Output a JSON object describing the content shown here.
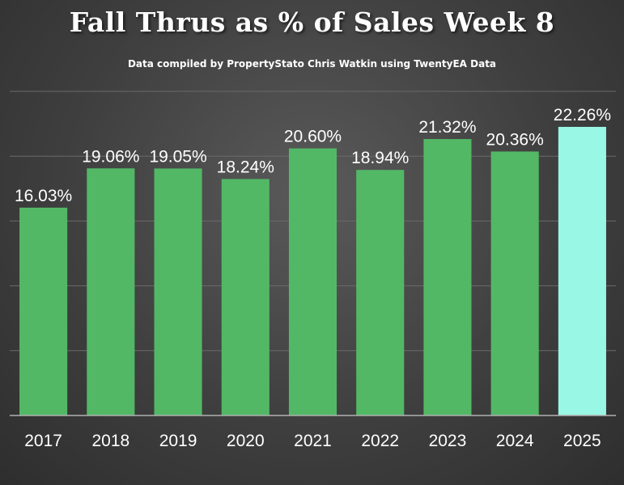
{
  "title": "Fall Thrus as % of Sales Week 8",
  "subtitle": "Data compiled by PropertyStato Chris Watkin using TwentyEA Data",
  "colors": {
    "bar": "#52b866",
    "highlight": "#99f7e5",
    "grid": "#6a6a6a",
    "axis": "#b0b0b0"
  },
  "chart_data": {
    "type": "bar",
    "title": "Fall Thrus as % of Sales Week 8",
    "subtitle": "Data compiled by PropertyStato Chris Watkin using TwentyEA Data",
    "xlabel": "",
    "ylabel": "",
    "ylim": [
      0,
      25
    ],
    "grid": true,
    "categories": [
      "2017",
      "2018",
      "2019",
      "2020",
      "2021",
      "2022",
      "2023",
      "2024",
      "2025"
    ],
    "values": [
      16.03,
      19.06,
      19.05,
      18.24,
      20.6,
      18.94,
      21.32,
      20.36,
      22.26
    ],
    "data_labels": [
      "16.03%",
      "19.06%",
      "19.05%",
      "18.24%",
      "20.60%",
      "18.94%",
      "21.32%",
      "20.36%",
      "22.26%"
    ],
    "highlight_category": "2025"
  }
}
